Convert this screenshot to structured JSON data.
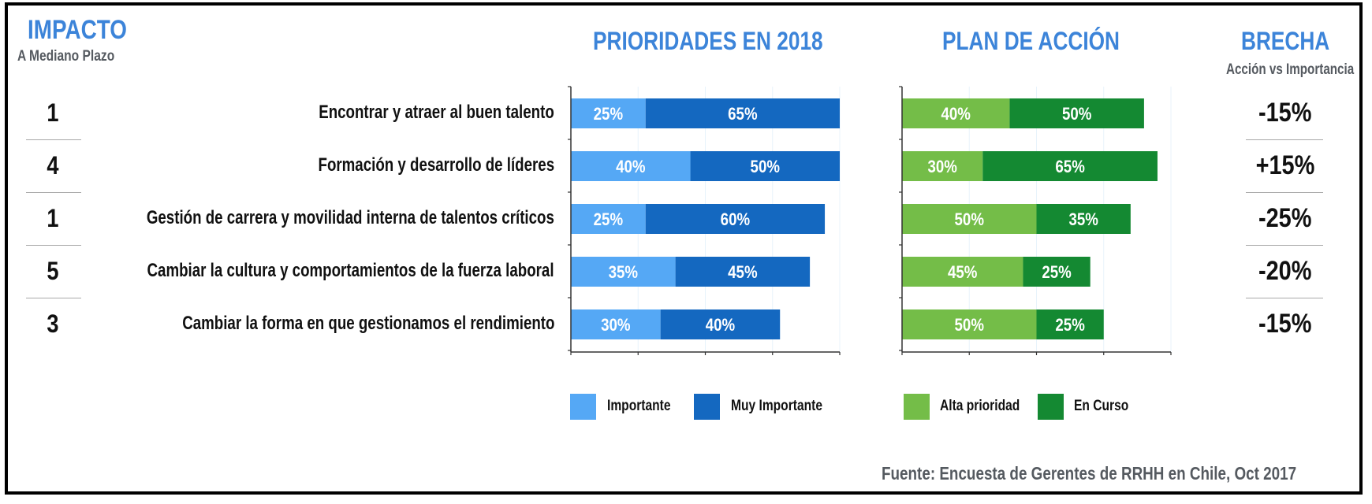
{
  "header": {
    "impact_title": "IMPACTO",
    "impact_subtitle": "A Mediano Plazo",
    "priorities_title": "PRIORIDADES EN 2018",
    "action_title": "PLAN DE ACCIÓN",
    "gap_title": "BRECHA",
    "gap_subtitle": "Acción vs Importancia"
  },
  "rows": [
    {
      "impact": "1",
      "label": "Encontrar y atraer al buen talento",
      "gap": "-15%"
    },
    {
      "impact": "4",
      "label": "Formación y desarrollo de líderes",
      "gap": "+15%"
    },
    {
      "impact": "1",
      "label": "Gestión de carrera y movilidad interna de talentos críticos",
      "gap": "-25%"
    },
    {
      "impact": "5",
      "label": "Cambiar la cultura y comportamientos de la fuerza laboral",
      "gap": "-20%"
    },
    {
      "impact": "3",
      "label": "Cambiar la forma en que gestionamos el rendimiento",
      "gap": "-15%"
    }
  ],
  "legend": {
    "priorities": [
      {
        "label": "Importante",
        "color": "#55a8f5"
      },
      {
        "label": "Muy Importante",
        "color": "#1468c0"
      }
    ],
    "action": [
      {
        "label": "Alta prioridad",
        "color": "#74bd48"
      },
      {
        "label": "En Curso",
        "color": "#148932"
      }
    ]
  },
  "footer": {
    "source": "Fuente: Encuesta de Gerentes de RRHH en Chile, Oct 2017"
  },
  "chart_data": [
    {
      "type": "bar",
      "orientation": "horizontal",
      "stacked": true,
      "title": "PRIORIDADES EN 2018",
      "categories": [
        "Encontrar y atraer al buen talento",
        "Formación y desarrollo de líderes",
        "Gestión de carrera y movilidad interna de talentos críticos",
        "Cambiar la cultura y comportamientos de la fuerza laboral",
        "Cambiar la forma en que gestionamos el rendimiento"
      ],
      "series": [
        {
          "name": "Importante",
          "color": "#55a8f5",
          "values": [
            25,
            40,
            25,
            35,
            30
          ]
        },
        {
          "name": "Muy Importante",
          "color": "#1468c0",
          "values": [
            65,
            50,
            60,
            45,
            40
          ]
        }
      ],
      "xlim": [
        0,
        90
      ],
      "xticks": 4,
      "value_suffix": "%",
      "grid": true,
      "legend": "bottom"
    },
    {
      "type": "bar",
      "orientation": "horizontal",
      "stacked": true,
      "title": "PLAN DE ACCIÓN",
      "categories": [
        "Encontrar y atraer al buen talento",
        "Formación y desarrollo de líderes",
        "Gestión de carrera y movilidad interna de talentos críticos",
        "Cambiar la cultura y comportamientos de la fuerza laboral",
        "Cambiar la forma en que gestionamos el rendimiento"
      ],
      "series": [
        {
          "name": "Alta prioridad",
          "color": "#74bd48",
          "values": [
            40,
            30,
            50,
            45,
            50
          ]
        },
        {
          "name": "En Curso",
          "color": "#148932",
          "values": [
            50,
            65,
            35,
            25,
            25
          ]
        }
      ],
      "xlim": [
        0,
        100
      ],
      "xticks": 4,
      "value_suffix": "%",
      "grid": true,
      "legend": "bottom"
    }
  ]
}
